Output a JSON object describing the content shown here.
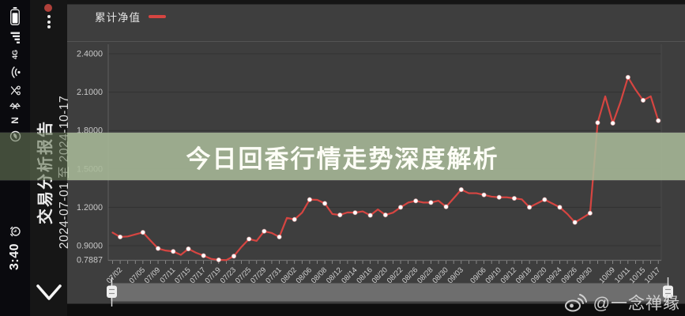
{
  "status_bar": {
    "time": "3:40",
    "signal_label": "4G",
    "nfc_label": "N",
    "icons": [
      "battery-icon",
      "signal-4g-icon",
      "wifi-icon",
      "scissors-icon",
      "bluetooth-icon",
      "nfc-icon",
      "browser-icon",
      "alarm-clock-icon"
    ]
  },
  "app_bar": {
    "title": "交易分析报告",
    "date_range": "2024-07-01 至 2024-10-17"
  },
  "banner": {
    "text": "今日回香行情走势深度解析",
    "bg_color": "#a9bb9f",
    "text_color": "#fdfdf6"
  },
  "watermark": {
    "icon": "weibo-icon",
    "handle": "@一念禅缘"
  },
  "chart_data": {
    "type": "line",
    "legend": "累计净值",
    "line_color": "#d64541",
    "marker_color": "#ffffff",
    "background_color": "#3e3e3e",
    "ylim": [
      0.7887,
      2.4
    ],
    "y_axis_labels": [
      "2.4000",
      "2.1000",
      "1.8000",
      "1.5000",
      "1.2000",
      "0.9000",
      "0.7887"
    ],
    "y_gridline_values": [
      2.4,
      2.1,
      1.8,
      1.5,
      1.2,
      0.9
    ],
    "values": [
      1.002,
      0.968,
      0.972,
      0.988,
      1.004,
      0.94,
      0.878,
      0.862,
      0.855,
      0.828,
      0.875,
      0.845,
      0.822,
      0.797,
      0.789,
      0.787,
      0.818,
      0.89,
      0.952,
      0.937,
      1.013,
      0.999,
      0.968,
      1.117,
      1.105,
      1.158,
      1.26,
      1.258,
      1.23,
      1.147,
      1.14,
      1.16,
      1.158,
      1.168,
      1.137,
      1.183,
      1.14,
      1.158,
      1.2,
      1.237,
      1.25,
      1.237,
      1.237,
      1.251,
      1.204,
      1.27,
      1.338,
      1.31,
      1.31,
      1.297,
      1.283,
      1.278,
      1.278,
      1.27,
      1.262,
      1.2,
      1.23,
      1.26,
      1.23,
      1.2,
      1.148,
      1.082,
      1.117,
      1.154,
      1.861,
      2.067,
      1.857,
      2.02,
      2.216,
      2.119,
      2.036,
      2.067,
      1.877
    ],
    "x_tick_labels": [
      {
        "i": 1,
        "label": "07/02"
      },
      {
        "i": 4,
        "label": "07/05"
      },
      {
        "i": 6,
        "label": "07/09"
      },
      {
        "i": 8,
        "label": "07/11"
      },
      {
        "i": 10,
        "label": "07/15"
      },
      {
        "i": 12,
        "label": "07/17"
      },
      {
        "i": 14,
        "label": "07/19"
      },
      {
        "i": 16,
        "label": "07/23"
      },
      {
        "i": 18,
        "label": "07/25"
      },
      {
        "i": 20,
        "label": "07/29"
      },
      {
        "i": 22,
        "label": "07/31"
      },
      {
        "i": 24,
        "label": "08/02"
      },
      {
        "i": 26,
        "label": "08/06"
      },
      {
        "i": 28,
        "label": "08/08"
      },
      {
        "i": 30,
        "label": "08/12"
      },
      {
        "i": 32,
        "label": "08/14"
      },
      {
        "i": 34,
        "label": "08/16"
      },
      {
        "i": 36,
        "label": "08/20"
      },
      {
        "i": 38,
        "label": "08/22"
      },
      {
        "i": 40,
        "label": "08/26"
      },
      {
        "i": 42,
        "label": "08/28"
      },
      {
        "i": 44,
        "label": "08/30"
      },
      {
        "i": 46,
        "label": "09/03"
      },
      {
        "i": 49,
        "label": "09/06"
      },
      {
        "i": 51,
        "label": "09/10"
      },
      {
        "i": 53,
        "label": "09/12"
      },
      {
        "i": 55,
        "label": "09/18"
      },
      {
        "i": 57,
        "label": "09/20"
      },
      {
        "i": 59,
        "label": "09/24"
      },
      {
        "i": 61,
        "label": "09/26"
      },
      {
        "i": 63,
        "label": "09/30"
      },
      {
        "i": 66,
        "label": "10/09"
      },
      {
        "i": 68,
        "label": "10/11"
      },
      {
        "i": 70,
        "label": "10/15"
      },
      {
        "i": 72,
        "label": "10/17"
      }
    ],
    "extra_marker_indices": [
      64
    ],
    "range_slider": {
      "present": true,
      "position": "bottom"
    }
  }
}
